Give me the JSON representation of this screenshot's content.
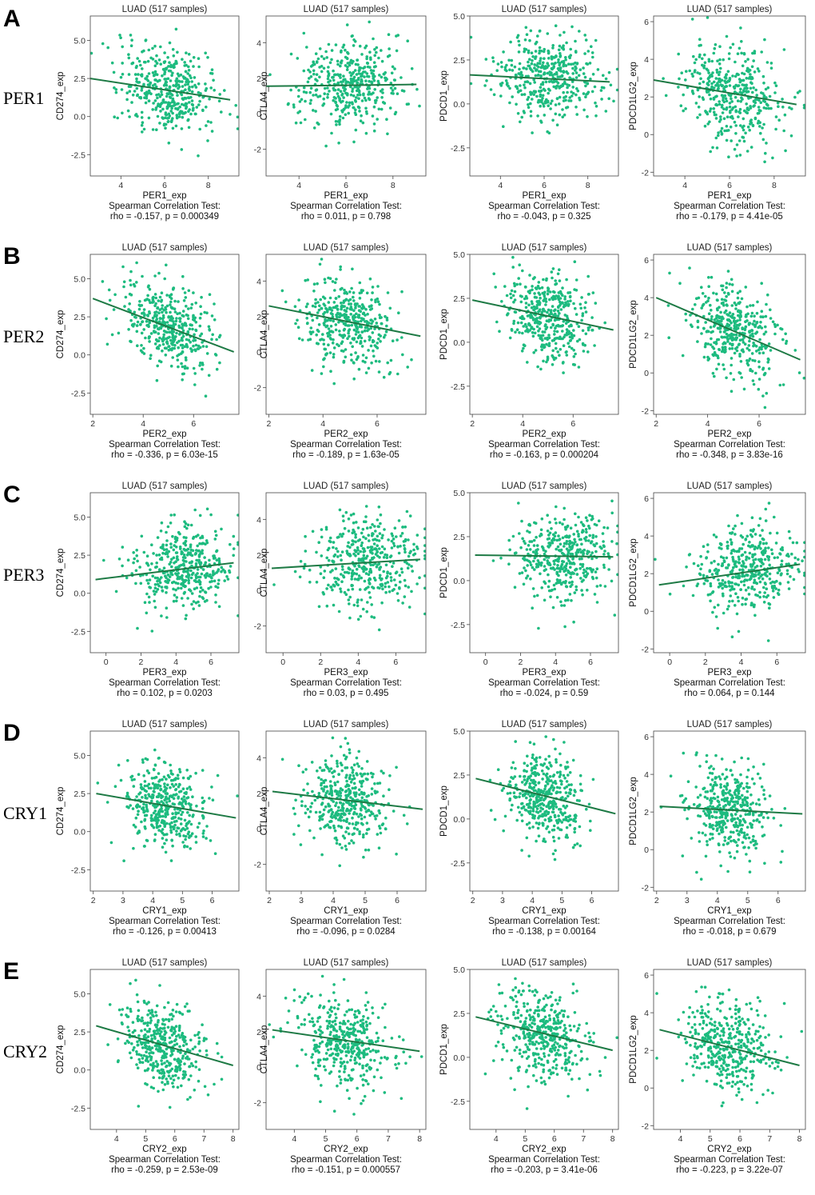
{
  "figure": {
    "title_prefix": "LUAD",
    "samples_label": "LUAD (517 samples)",
    "test_label": "Spearman Correlation Test:",
    "point_color": "#1DBB7F",
    "line_color": "#1E7A45",
    "targets": [
      {
        "gene": "CD274",
        "ylabel": "CD274_exp",
        "ylim": [
          -3.9,
          6.6
        ],
        "yticks": [
          "5.0",
          "2.5",
          "0.0",
          "-2.5"
        ],
        "ytick_values": [
          5,
          2.5,
          0,
          -2.5
        ],
        "center": 1.6,
        "spread": 1.35
      },
      {
        "gene": "CTLA4",
        "ylabel": "CTLA4_exp",
        "ylim": [
          -3.5,
          5.5
        ],
        "yticks": [
          "4",
          "2",
          "0",
          "-2"
        ],
        "ytick_values": [
          4,
          2,
          0,
          -2
        ],
        "center": 1.6,
        "spread": 1.25
      },
      {
        "gene": "PDCD1",
        "ylabel": "PDCD1_exp",
        "ylim": [
          -4.1,
          5.0
        ],
        "yticks": [
          "5.0",
          "2.5",
          "0.0",
          "-2.5"
        ],
        "ytick_values": [
          5,
          2.5,
          0,
          -2.5
        ],
        "center": 1.4,
        "spread": 1.3
      },
      {
        "gene": "PDCD1LG2",
        "ylabel": "PDCD1LG2_exp",
        "ylim": [
          -2.2,
          6.3
        ],
        "yticks": [
          "6",
          "4",
          "2",
          "0",
          "-2"
        ],
        "ytick_values": [
          6,
          4,
          2,
          0,
          -2
        ],
        "center": 2.2,
        "spread": 1.2
      }
    ]
  },
  "chart_data": [
    {
      "panel": "A",
      "row_label": "PER1",
      "type": "scatter",
      "xlabel": "PER1_exp",
      "xlim": [
        2.6,
        9.4
      ],
      "xticks": [
        "4",
        "6",
        "8"
      ],
      "xtick_values": [
        4,
        6,
        8
      ],
      "x_center": 6.2,
      "x_spread": 1.1,
      "plots": [
        {
          "title": "LUAD (517 samples)",
          "ylabel": "CD274_exp",
          "rho": "-0.157",
          "p": "0.000349",
          "stat_text": "rho = -0.157, p = 0.000349",
          "fit": {
            "x": [
              2.6,
              9.0
            ],
            "y": [
              2.5,
              1.1
            ]
          }
        },
        {
          "title": "LUAD (517 samples)",
          "ylabel": "CTLA4_exp",
          "rho": "0.011",
          "p": "0.798",
          "stat_text": "rho = 0.011, p = 0.798",
          "fit": {
            "x": [
              2.6,
              9.0
            ],
            "y": [
              1.55,
              1.65
            ]
          }
        },
        {
          "title": "LUAD (517 samples)",
          "ylabel": "PDCD1_exp",
          "rho": "-0.043",
          "p": "0.325",
          "stat_text": "rho = -0.043, p = 0.325",
          "fit": {
            "x": [
              2.6,
              9.0
            ],
            "y": [
              1.65,
              1.25
            ]
          }
        },
        {
          "title": "LUAD (517 samples)",
          "ylabel": "PDCD1LG2_exp",
          "rho": "-0.179",
          "p": "4.41e-05",
          "stat_text": "rho = -0.179, p = 4.41e-05",
          "fit": {
            "x": [
              2.6,
              9.0
            ],
            "y": [
              2.9,
              1.6
            ]
          }
        }
      ]
    },
    {
      "panel": "B",
      "row_label": "PER2",
      "type": "scatter",
      "xlabel": "PER2_exp",
      "xlim": [
        1.9,
        7.8
      ],
      "xticks": [
        "2",
        "4",
        "6"
      ],
      "xtick_values": [
        2,
        4,
        6
      ],
      "x_center": 5.0,
      "x_spread": 0.85,
      "plots": [
        {
          "title": "LUAD (517 samples)",
          "ylabel": "CD274_exp",
          "rho": "-0.336",
          "p": "6.03e-15",
          "stat_text": "rho = -0.336, p = 6.03e-15",
          "fit": {
            "x": [
              2.0,
              7.6
            ],
            "y": [
              3.7,
              0.2
            ]
          }
        },
        {
          "title": "LUAD (517 samples)",
          "ylabel": "CTLA4_exp",
          "rho": "-0.189",
          "p": "1.63e-05",
          "stat_text": "rho = -0.189, p = 1.63e-05",
          "fit": {
            "x": [
              2.0,
              7.6
            ],
            "y": [
              2.6,
              0.9
            ]
          }
        },
        {
          "title": "LUAD (517 samples)",
          "ylabel": "PDCD1_exp",
          "rho": "-0.163",
          "p": "0.000204",
          "stat_text": "rho = -0.163, p = 0.000204",
          "fit": {
            "x": [
              2.0,
              7.6
            ],
            "y": [
              2.4,
              0.7
            ]
          }
        },
        {
          "title": "LUAD (517 samples)",
          "ylabel": "PDCD1LG2_exp",
          "rho": "-0.348",
          "p": "3.83e-16",
          "stat_text": "rho = -0.348, p = 3.83e-16",
          "fit": {
            "x": [
              2.0,
              7.6
            ],
            "y": [
              4.0,
              0.7
            ]
          }
        }
      ]
    },
    {
      "panel": "C",
      "row_label": "PER3",
      "type": "scatter",
      "xlabel": "PER3_exp",
      "xlim": [
        -0.9,
        7.6
      ],
      "xticks": [
        "0",
        "2",
        "4",
        "6"
      ],
      "xtick_values": [
        0,
        2,
        4,
        6
      ],
      "x_center": 4.4,
      "x_spread": 1.4,
      "plots": [
        {
          "title": "LUAD (517 samples)",
          "ylabel": "CD274_exp",
          "rho": "0.102",
          "p": "0.0203",
          "stat_text": "rho = 0.102, p = 0.0203",
          "fit": {
            "x": [
              -0.6,
              7.3
            ],
            "y": [
              0.9,
              2.0
            ]
          }
        },
        {
          "title": "LUAD (517 samples)",
          "ylabel": "CTLA4_exp",
          "rho": "0.03",
          "p": "0.495",
          "stat_text": "rho = 0.03, p = 0.495",
          "fit": {
            "x": [
              -0.6,
              7.3
            ],
            "y": [
              1.25,
              1.75
            ]
          }
        },
        {
          "title": "LUAD (517 samples)",
          "ylabel": "PDCD1_exp",
          "rho": "-0.024",
          "p": "0.59",
          "stat_text": "rho = -0.024, p = 0.59",
          "fit": {
            "x": [
              -0.6,
              7.3
            ],
            "y": [
              1.45,
              1.35
            ]
          }
        },
        {
          "title": "LUAD (517 samples)",
          "ylabel": "PDCD1LG2_exp",
          "rho": "0.064",
          "p": "0.144",
          "stat_text": "rho = 0.064, p = 0.144",
          "fit": {
            "x": [
              -0.6,
              7.3
            ],
            "y": [
              1.4,
              2.5
            ]
          }
        }
      ]
    },
    {
      "panel": "D",
      "row_label": "CRY1",
      "type": "scatter",
      "xlabel": "CRY1_exp",
      "xlim": [
        1.9,
        6.9
      ],
      "xticks": [
        "2",
        "3",
        "4",
        "5",
        "6"
      ],
      "xtick_values": [
        2,
        3,
        4,
        5,
        6
      ],
      "x_center": 4.4,
      "x_spread": 0.65,
      "plots": [
        {
          "title": "LUAD (517 samples)",
          "ylabel": "CD274_exp",
          "rho": "-0.126",
          "p": "0.00413",
          "stat_text": "rho = -0.126, p = 0.00413",
          "fit": {
            "x": [
              2.1,
              6.8
            ],
            "y": [
              2.5,
              0.9
            ]
          }
        },
        {
          "title": "LUAD (517 samples)",
          "ylabel": "CTLA4_exp",
          "rho": "-0.096",
          "p": "0.0284",
          "stat_text": "rho = -0.096, p = 0.0284",
          "fit": {
            "x": [
              2.1,
              6.8
            ],
            "y": [
              2.1,
              1.1
            ]
          }
        },
        {
          "title": "LUAD (517 samples)",
          "ylabel": "PDCD1_exp",
          "rho": "-0.138",
          "p": "0.00164",
          "stat_text": "rho = -0.138, p = 0.00164",
          "fit": {
            "x": [
              2.1,
              6.8
            ],
            "y": [
              2.3,
              0.3
            ]
          }
        },
        {
          "title": "LUAD (517 samples)",
          "ylabel": "PDCD1LG2_exp",
          "rho": "-0.018",
          "p": "0.679",
          "stat_text": "rho = -0.018, p = 0.679",
          "fit": {
            "x": [
              2.1,
              6.8
            ],
            "y": [
              2.3,
              1.9
            ]
          }
        }
      ]
    },
    {
      "panel": "E",
      "row_label": "CRY2",
      "type": "scatter",
      "xlabel": "CRY2_exp",
      "xlim": [
        3.1,
        8.2
      ],
      "xticks": [
        "4",
        "5",
        "6",
        "7",
        "8"
      ],
      "xtick_values": [
        4,
        5,
        6,
        7,
        8
      ],
      "x_center": 5.6,
      "x_spread": 0.75,
      "plots": [
        {
          "title": "LUAD (517 samples)",
          "ylabel": "CD274_exp",
          "rho": "-0.259",
          "p": "2.53e-09",
          "stat_text": "rho = -0.259, p = 2.53e-09",
          "fit": {
            "x": [
              3.3,
              8.0
            ],
            "y": [
              2.9,
              0.3
            ]
          }
        },
        {
          "title": "LUAD (517 samples)",
          "ylabel": "CTLA4_exp",
          "rho": "-0.151",
          "p": "0.000557",
          "stat_text": "rho = -0.151, p = 0.000557",
          "fit": {
            "x": [
              3.3,
              8.0
            ],
            "y": [
              2.1,
              0.9
            ]
          }
        },
        {
          "title": "LUAD (517 samples)",
          "ylabel": "PDCD1_exp",
          "rho": "-0.203",
          "p": "3.41e-06",
          "stat_text": "rho = -0.203, p = 3.41e-06",
          "fit": {
            "x": [
              3.3,
              8.0
            ],
            "y": [
              2.3,
              0.4
            ]
          }
        },
        {
          "title": "LUAD (517 samples)",
          "ylabel": "PDCD1LG2_exp",
          "rho": "-0.223",
          "p": "3.22e-07",
          "stat_text": "rho = -0.223, p = 3.22e-07",
          "fit": {
            "x": [
              3.3,
              8.0
            ],
            "y": [
              3.1,
              1.2
            ]
          }
        }
      ]
    }
  ]
}
